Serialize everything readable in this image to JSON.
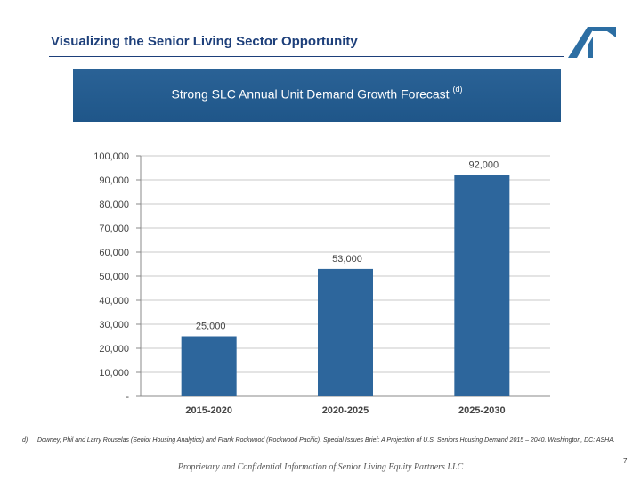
{
  "slide": {
    "title": "Visualizing the Senior Living Sector Opportunity",
    "banner_title": "Strong SLC Annual Unit Demand Growth Forecast",
    "banner_superscript": "(d)",
    "footnote_marker": "d)",
    "footnote_text": "Downey, Phil and Larry Rouselas (Senior Housing Analytics) and Frank Rockwood (Rockwood Pacific). Special Issues Brief: A Projection of U.S. Seniors Housing Demand 2015 – 2040. Washington, DC: ASHA.",
    "footer_text": "Proprietary and Confidential Information of Senior Living Equity Partners LLC",
    "page_number": "7",
    "colors": {
      "title": "#1d3f7a",
      "banner": "#225a8c",
      "bar": "#2d669c",
      "logo": "#2c6ea3"
    }
  },
  "chart_data": {
    "type": "bar",
    "categories": [
      "2015-2020",
      "2020-2025",
      "2025-2030"
    ],
    "values": [
      25000,
      53000,
      92000
    ],
    "data_labels": [
      "25,000",
      "53,000",
      "92,000"
    ],
    "y_ticks": [
      0,
      10000,
      20000,
      30000,
      40000,
      50000,
      60000,
      70000,
      80000,
      90000,
      100000
    ],
    "y_tick_labels": [
      "-",
      "10,000",
      "20,000",
      "30,000",
      "40,000",
      "50,000",
      "60,000",
      "70,000",
      "80,000",
      "90,000",
      "100,000"
    ],
    "ylim": [
      0,
      100000
    ],
    "grid": true,
    "legend": "none"
  }
}
